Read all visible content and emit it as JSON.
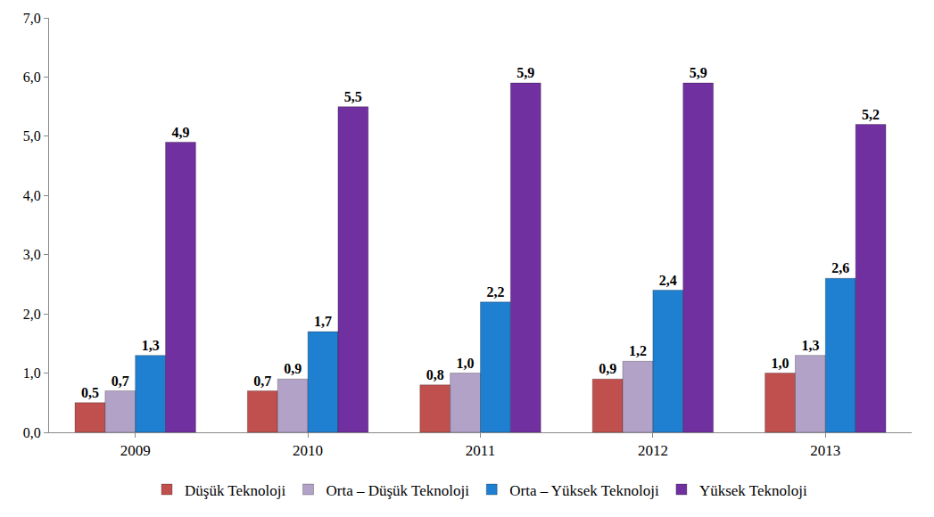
{
  "chart_data": {
    "type": "bar",
    "categories": [
      "2009",
      "2010",
      "2011",
      "2012",
      "2013"
    ],
    "series": [
      {
        "name": "Düşük Teknoloji",
        "color": "#C0504D",
        "values": [
          0.5,
          0.7,
          0.8,
          0.9,
          1.0
        ],
        "value_labels": [
          "0,5",
          "0,7",
          "0,8",
          "0,9",
          "1,0"
        ]
      },
      {
        "name": "Orta – Düşük Teknoloji",
        "color": "#B3A2C7",
        "values": [
          0.7,
          0.9,
          1.0,
          1.2,
          1.3
        ],
        "value_labels": [
          "0,7",
          "0,9",
          "1,0",
          "1,2",
          "1,3"
        ]
      },
      {
        "name": "Orta – Yüksek Teknoloji",
        "color": "#1F7FD0",
        "values": [
          1.3,
          1.7,
          2.2,
          2.4,
          2.6
        ],
        "value_labels": [
          "1,3",
          "1,7",
          "2,2",
          "2,4",
          "2,6"
        ]
      },
      {
        "name": "Yüksek Teknoloji",
        "color": "#7030A0",
        "values": [
          4.9,
          5.5,
          5.9,
          5.9,
          5.2
        ],
        "value_labels": [
          "4,9",
          "5,5",
          "5,9",
          "5,9",
          "5,2"
        ]
      }
    ],
    "ylim": [
      0,
      7
    ],
    "yticks": [
      {
        "value": 0,
        "label": "0,0"
      },
      {
        "value": 1,
        "label": "1,0"
      },
      {
        "value": 2,
        "label": "2,0"
      },
      {
        "value": 3,
        "label": "3,0"
      },
      {
        "value": 4,
        "label": "4,0"
      },
      {
        "value": 5,
        "label": "5,0"
      },
      {
        "value": 6,
        "label": "6,0"
      },
      {
        "value": 7,
        "label": "7,0"
      }
    ],
    "grid": false,
    "legend": "bottom",
    "data_labels": true
  }
}
